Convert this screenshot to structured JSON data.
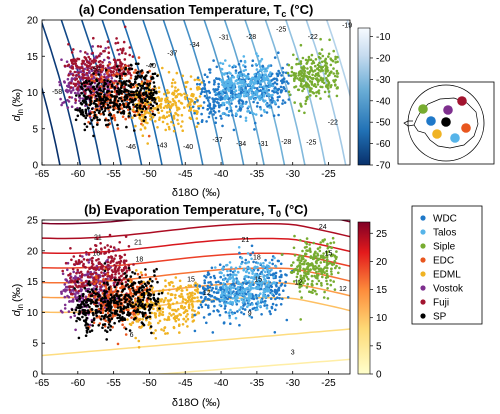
{
  "chart_data": [
    {
      "id": "a",
      "type": "scatter",
      "title": "(a) Condensation Temperature, T",
      "title_sub": "c",
      "title_unit": " (°C)",
      "xlabel": "δ18O (‰)",
      "ylabel": "d",
      "ylabel_sub": "ln",
      "ylabel_unit": "(‰)",
      "xlim": [
        -65,
        -22
      ],
      "ylim": [
        0,
        20
      ],
      "xticks": [
        -65,
        -60,
        -55,
        -50,
        -45,
        -40,
        -35,
        -30,
        -25
      ],
      "yticks": [
        0,
        5,
        10,
        15,
        20
      ],
      "colorbar": {
        "ticks": [
          -70,
          -60,
          -50,
          -40,
          -30,
          -20,
          -10
        ],
        "range": [
          -70,
          -6
        ],
        "colors": [
          "#08306b",
          "#2171b5",
          "#6baed6",
          "#c6dbef",
          "#f7fbff"
        ]
      },
      "contour_labels": [
        "-46",
        "-43",
        "-40",
        "-37",
        "-34",
        "-31",
        "-28",
        "-25",
        "-22",
        "-19",
        "-40",
        "-37",
        "-34",
        "-31",
        "-28",
        "-25",
        "-22",
        "-58",
        "-52"
      ]
    },
    {
      "id": "b",
      "type": "scatter",
      "title": "(b) Evaporation Temperature, T",
      "title_sub": "0",
      "title_unit": " (°C)",
      "xlabel": "δ18O (‰)",
      "ylabel": "d",
      "ylabel_sub": "ln",
      "ylabel_unit": "(‰)",
      "xlim": [
        -65,
        -22
      ],
      "ylim": [
        0,
        25
      ],
      "xticks": [
        -65,
        -60,
        -55,
        -50,
        -45,
        -40,
        -35,
        -30,
        -25
      ],
      "yticks": [
        0,
        5,
        10,
        15,
        20,
        25
      ],
      "colorbar": {
        "ticks": [
          0,
          5,
          10,
          15,
          20,
          25
        ],
        "range": [
          0,
          27
        ],
        "colors": [
          "#ffffcc",
          "#fed976",
          "#fd8d3c",
          "#e31a1c",
          "#800026"
        ]
      },
      "contour_labels": [
        "21",
        "18",
        "15",
        "12",
        "9",
        "6",
        "3",
        "24",
        "21",
        "18",
        "15",
        "12",
        "21",
        "18",
        "15",
        "12"
      ]
    }
  ],
  "series": [
    {
      "name": "WDC",
      "color": "#1f78c8",
      "x_range": [
        -43,
        -31
      ],
      "y_center_a": 10.2,
      "y_center_b": 13.5
    },
    {
      "name": "Talos",
      "color": "#56b4e9",
      "x_range": [
        -40,
        -33
      ],
      "y_center_a": 10.8,
      "y_center_b": 14.2
    },
    {
      "name": "Siple",
      "color": "#77ac30",
      "x_range": [
        -30,
        -24
      ],
      "y_center_a": 12.5,
      "y_center_b": 17.5
    },
    {
      "name": "EDC",
      "color": "#e8561e",
      "x_range": [
        -58,
        -50
      ],
      "y_center_a": 9.5,
      "y_center_b": 12.0
    },
    {
      "name": "EDML",
      "color": "#f0b323",
      "x_range": [
        -52,
        -43
      ],
      "y_center_a": 8.5,
      "y_center_b": 11.0
    },
    {
      "name": "Vostok",
      "color": "#7e2f8e",
      "x_range": [
        -62,
        -55
      ],
      "y_center_a": 11.5,
      "y_center_b": 14.0
    },
    {
      "name": "Fuji",
      "color": "#a2142f",
      "x_range": [
        -61,
        -53
      ],
      "y_center_a": 13.0,
      "y_center_b": 16.5
    },
    {
      "name": "SP",
      "color": "#000000",
      "x_range": [
        -60,
        -49
      ],
      "y_center_a": 9.5,
      "y_center_b": 11.5
    }
  ],
  "map": {
    "sites": [
      {
        "name": "Vostok",
        "color": "#7e2f8e"
      },
      {
        "name": "Fuji",
        "color": "#a2142f"
      },
      {
        "name": "Siple",
        "color": "#77ac30"
      },
      {
        "name": "WDC",
        "color": "#1f78c8"
      },
      {
        "name": "SP",
        "color": "#000000"
      },
      {
        "name": "EDC",
        "color": "#e8561e"
      },
      {
        "name": "EDML",
        "color": "#f0b323"
      },
      {
        "name": "Talos",
        "color": "#56b4e9"
      }
    ]
  }
}
